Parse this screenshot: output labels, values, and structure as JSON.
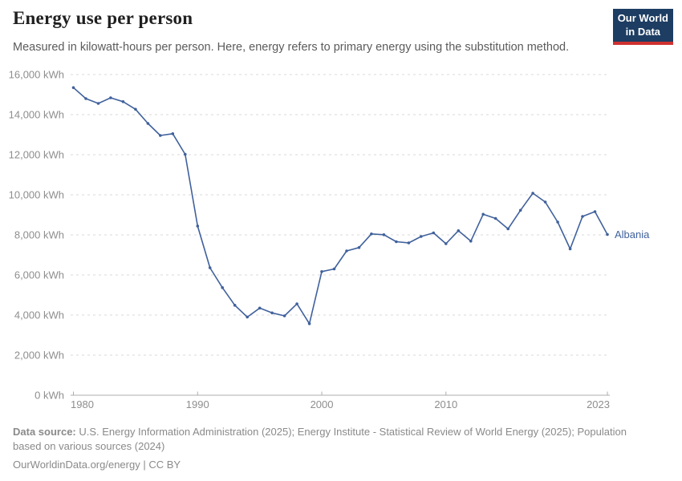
{
  "header": {
    "title": "Energy use per person",
    "subtitle": "Measured in kilowatt-hours per person. Here, energy refers to primary energy using the substitution method.",
    "logo": {
      "line1": "Our World",
      "line2": "in Data"
    }
  },
  "colors": {
    "line": "#40619C",
    "grid": "#DADADA",
    "axis": "#ADADAD",
    "tick_text": "#8E8E8E",
    "logo_bg": "#1D3D63",
    "logo_stripe": "#CF3231"
  },
  "chart_data": {
    "type": "line",
    "title": "Energy use per person",
    "xlabel": "",
    "ylabel": "kWh",
    "xlim": [
      1980,
      2023
    ],
    "ylim": [
      0,
      16000
    ],
    "grid": "horizontal-dashed",
    "legend": "line-end-label",
    "x_ticks": [
      1980,
      1990,
      2000,
      2010,
      2023
    ],
    "x_tick_labels": [
      "1980",
      "1990",
      "2000",
      "2010",
      "2023"
    ],
    "y_ticks": [
      0,
      2000,
      4000,
      6000,
      8000,
      10000,
      12000,
      14000,
      16000
    ],
    "y_tick_labels": [
      "0 kWh",
      "2,000 kWh",
      "4,000 kWh",
      "6,000 kWh",
      "8,000 kWh",
      "10,000 kWh",
      "12,000 kWh",
      "14,000 kWh",
      "16,000 kWh"
    ],
    "x": [
      1980,
      1981,
      1982,
      1983,
      1984,
      1985,
      1986,
      1987,
      1988,
      1989,
      1990,
      1991,
      1992,
      1993,
      1994,
      1995,
      1996,
      1997,
      1998,
      1999,
      2000,
      2001,
      2002,
      2003,
      2004,
      2005,
      2006,
      2007,
      2008,
      2009,
      2010,
      2011,
      2012,
      2013,
      2014,
      2015,
      2016,
      2017,
      2018,
      2019,
      2020,
      2021,
      2022,
      2023
    ],
    "series": [
      {
        "name": "Albania",
        "color": "#40619C",
        "values": [
          15350,
          14800,
          14560,
          14840,
          14650,
          14270,
          13560,
          12960,
          13050,
          12020,
          8440,
          6360,
          5370,
          4490,
          3900,
          4350,
          4110,
          3960,
          4560,
          3570,
          6170,
          6300,
          7200,
          7370,
          8050,
          8010,
          7660,
          7600,
          7920,
          8100,
          7560,
          8210,
          7690,
          9030,
          8820,
          8300,
          9230,
          10080,
          9640,
          8640,
          7300,
          8920,
          9160,
          8020
        ]
      }
    ]
  },
  "footer": {
    "datasource_label": "Data source:",
    "datasource_text": " U.S. Energy Information Administration (2025); Energy Institute - Statistical Review of World Energy (2025); Population based on various sources (2024)",
    "license": "OurWorldinData.org/energy | CC BY"
  }
}
